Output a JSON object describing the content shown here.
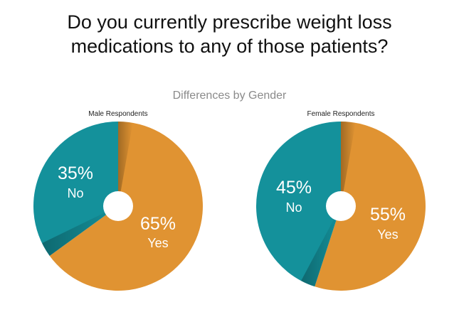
{
  "title_lines": [
    "Do you currently prescribe weight loss",
    "medications to any of those patients?"
  ],
  "subtitle": "Differences by Gender",
  "colors": {
    "yes": "#e09332",
    "no": "#14919b",
    "hole": "#ffffff"
  },
  "chart_data": [
    {
      "type": "pie",
      "title": "Male Respondents",
      "slices": [
        {
          "label": "Yes",
          "value": 65,
          "display": "65%"
        },
        {
          "label": "No",
          "value": 35,
          "display": "35%"
        }
      ]
    },
    {
      "type": "pie",
      "title": "Female Respondents",
      "slices": [
        {
          "label": "Yes",
          "value": 55,
          "display": "55%"
        },
        {
          "label": "No",
          "value": 45,
          "display": "45%"
        }
      ]
    }
  ]
}
